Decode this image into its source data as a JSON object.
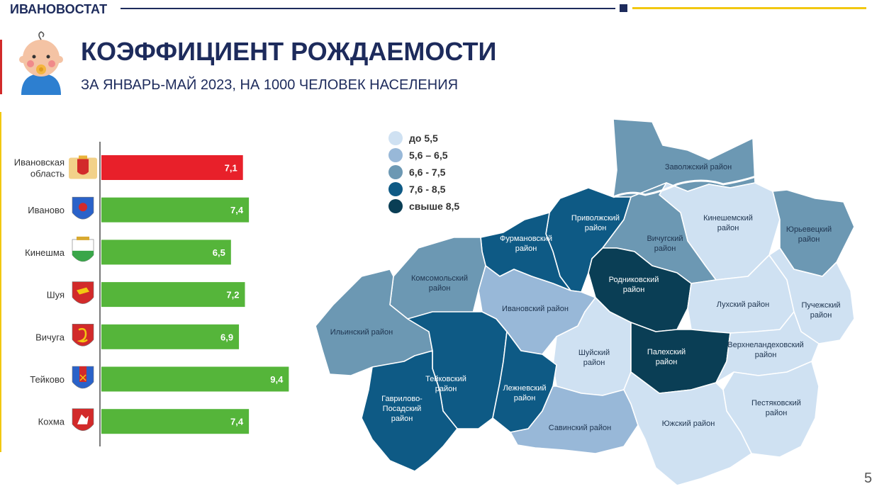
{
  "header": {
    "brand": "ИВАНОВОСТАТ",
    "title": "КОЭФФИЦИЕНТ РОЖДАЕМОСТИ",
    "subtitle": "ЗА ЯНВАРЬ-МАЙ 2023, НА 1000 ЧЕЛОВЕК НАСЕЛЕНИЯ",
    "page_number": "5"
  },
  "colors": {
    "navy": "#1d2b5c",
    "bar_region": "#e8202a",
    "bar_city": "#55b53a",
    "yellow": "#f2c811",
    "scale": [
      "#cfe1f2",
      "#98b8d8",
      "#6c98b3",
      "#0e5a85",
      "#0a3e55"
    ]
  },
  "legend": {
    "items": [
      {
        "label": "до 5,5",
        "color": "#cfe1f2"
      },
      {
        "label": "5,6 – 6,5",
        "color": "#98b8d8"
      },
      {
        "label": "6,6 - 7,5",
        "color": "#6c98b3"
      },
      {
        "label": "7,6 - 8,5",
        "color": "#0e5a85"
      },
      {
        "label": "свыше 8,5",
        "color": "#0a3e55"
      }
    ]
  },
  "chart_data": [
    {
      "type": "bar",
      "orientation": "horizontal",
      "categories": [
        "Ивановская область",
        "Иваново",
        "Кинешма",
        "Шуя",
        "Вичуга",
        "Тейково",
        "Кохма"
      ],
      "values": [
        7.1,
        7.4,
        6.5,
        7.2,
        6.9,
        9.4,
        7.4
      ],
      "value_labels": [
        "7,1",
        "7,4",
        "6,5",
        "7,2",
        "6,9",
        "9,4",
        "7,4"
      ],
      "bar_colors": [
        "#e8202a",
        "#55b53a",
        "#55b53a",
        "#55b53a",
        "#55b53a",
        "#55b53a",
        "#55b53a"
      ],
      "emblem_icons": [
        "ivanovo-oblast-emblem-icon",
        "ivanovo-emblem-icon",
        "kineshma-emblem-icon",
        "shuya-emblem-icon",
        "vichuga-emblem-icon",
        "teikovo-emblem-icon",
        "kokhma-emblem-icon"
      ],
      "xlim": [
        0,
        9.6
      ],
      "grid": false,
      "legend": "none"
    },
    {
      "type": "choropleth",
      "regions": [
        {
          "name": "Заволжский район",
          "label": "Заволжский район",
          "class": "6,6 - 7,5"
        },
        {
          "name": "Приволжский район",
          "label": "Приволжский\nрайон",
          "class": "7,6 - 8,5"
        },
        {
          "name": "Фурмановский район",
          "label": "Фурмановский\nрайон",
          "class": "7,6 - 8,5"
        },
        {
          "name": "Кинешемский район",
          "label": "Кинешемский\nрайон",
          "class": "до 5,5"
        },
        {
          "name": "Юрьевецкий район",
          "label": "Юрьевецкий\nрайон",
          "class": "6,6 - 7,5"
        },
        {
          "name": "Вичугский район",
          "label": "Вичугский\nрайон",
          "class": "6,6 - 7,5"
        },
        {
          "name": "Комсомольский район",
          "label": "Комсомольский\nрайон",
          "class": "6,6 - 7,5"
        },
        {
          "name": "Родниковский район",
          "label": "Родниковский\nрайон",
          "class": "свыше 8,5"
        },
        {
          "name": "Ивановский район",
          "label": "Ивановский район",
          "class": "5,6 – 6,5"
        },
        {
          "name": "Лухский район",
          "label": "Лухский район",
          "class": "до 5,5"
        },
        {
          "name": "Пучежский район",
          "label": "Пучежский\nрайон",
          "class": "до 5,5"
        },
        {
          "name": "Ильинский район",
          "label": "Ильинский район",
          "class": "6,6 - 7,5"
        },
        {
          "name": "Шуйский район",
          "label": "Шуйский\nрайон",
          "class": "до 5,5"
        },
        {
          "name": "Палехский район",
          "label": "Палехский\nрайон",
          "class": "свыше 8,5"
        },
        {
          "name": "Верхнеландеховский район",
          "label": "Верхнеландеховский\nрайон",
          "class": "до 5,5"
        },
        {
          "name": "Тейковский район",
          "label": "Тейковский\nрайон",
          "class": "7,6 - 8,5"
        },
        {
          "name": "Лежневский район",
          "label": "Лежневский\nрайон",
          "class": "7,6 - 8,5"
        },
        {
          "name": "Гаврилово-Посадский район",
          "label": "Гаврилово-\nПосадский\nрайон",
          "class": "7,6 - 8,5"
        },
        {
          "name": "Савинский район",
          "label": "Савинский район",
          "class": "5,6 – 6,5"
        },
        {
          "name": "Пестяковский район",
          "label": "Пестяковский\nрайон",
          "class": "до 5,5"
        },
        {
          "name": "Южский район",
          "label": "Южский район",
          "class": "до 5,5"
        }
      ]
    }
  ]
}
